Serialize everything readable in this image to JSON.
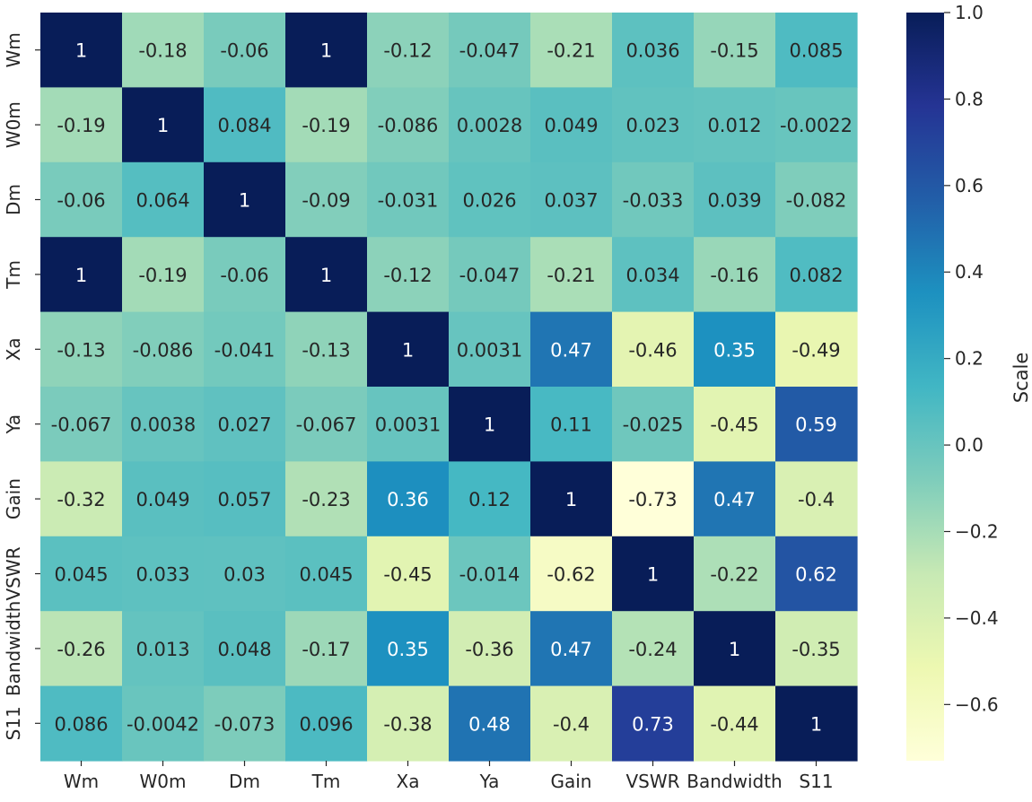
{
  "chart_data": {
    "type": "heatmap",
    "title": "",
    "xlabel": "",
    "ylabel": "",
    "x_categories": [
      "Wm",
      "W0m",
      "Dm",
      "Tm",
      "Xa",
      "Ya",
      "Gain",
      "VSWR",
      "Bandwidth",
      "S11"
    ],
    "y_categories": [
      "Wm",
      "W0m",
      "Dm",
      "Tm",
      "Xa",
      "Ya",
      "Gain",
      "VSWR",
      "Bandwidth",
      "S11"
    ],
    "values": [
      [
        "1",
        "-0.18",
        "-0.06",
        "1",
        "-0.12",
        "-0.047",
        "-0.21",
        "0.036",
        "-0.15",
        "0.085"
      ],
      [
        "-0.19",
        "1",
        "0.084",
        "-0.19",
        "-0.086",
        "0.0028",
        "0.049",
        "0.023",
        "0.012",
        "-0.0022"
      ],
      [
        "-0.06",
        "0.064",
        "1",
        "-0.09",
        "-0.031",
        "0.026",
        "0.037",
        "-0.033",
        "0.039",
        "-0.082"
      ],
      [
        "1",
        "-0.19",
        "-0.06",
        "1",
        "-0.12",
        "-0.047",
        "-0.21",
        "0.034",
        "-0.16",
        "0.082"
      ],
      [
        "-0.13",
        "-0.086",
        "-0.041",
        "-0.13",
        "1",
        "0.0031",
        "0.47",
        "-0.46",
        "0.35",
        "-0.49"
      ],
      [
        "-0.067",
        "0.0038",
        "0.027",
        "-0.067",
        "0.0031",
        "1",
        "0.11",
        "-0.025",
        "-0.45",
        "0.59"
      ],
      [
        "-0.32",
        "0.049",
        "0.057",
        "-0.23",
        "0.36",
        "0.12",
        "1",
        "-0.73",
        "0.47",
        "-0.4"
      ],
      [
        "0.045",
        "0.033",
        "0.03",
        "0.045",
        "-0.45",
        "-0.014",
        "-0.62",
        "1",
        "-0.22",
        "0.62"
      ],
      [
        "-0.26",
        "0.013",
        "0.048",
        "-0.17",
        "0.35",
        "-0.36",
        "0.47",
        "-0.24",
        "1",
        "-0.35"
      ],
      [
        "0.086",
        "-0.0042",
        "-0.073",
        "0.096",
        "-0.38",
        "0.48",
        "-0.4",
        "0.73",
        "-0.44",
        "1"
      ]
    ],
    "colormap": "YlGnBu",
    "vmin": -0.73,
    "vmax": 1.0,
    "colorbar": {
      "label": "Scale",
      "ticks": [
        1.0,
        0.8,
        0.6,
        0.4,
        0.2,
        0.0,
        -0.2,
        -0.4,
        -0.6
      ],
      "tick_labels": [
        "1.0",
        "0.8",
        "0.6",
        "0.4",
        "0.2",
        "0.0",
        "−0.2",
        "−0.4",
        "−0.6"
      ]
    },
    "grid": false,
    "legend": "right"
  }
}
